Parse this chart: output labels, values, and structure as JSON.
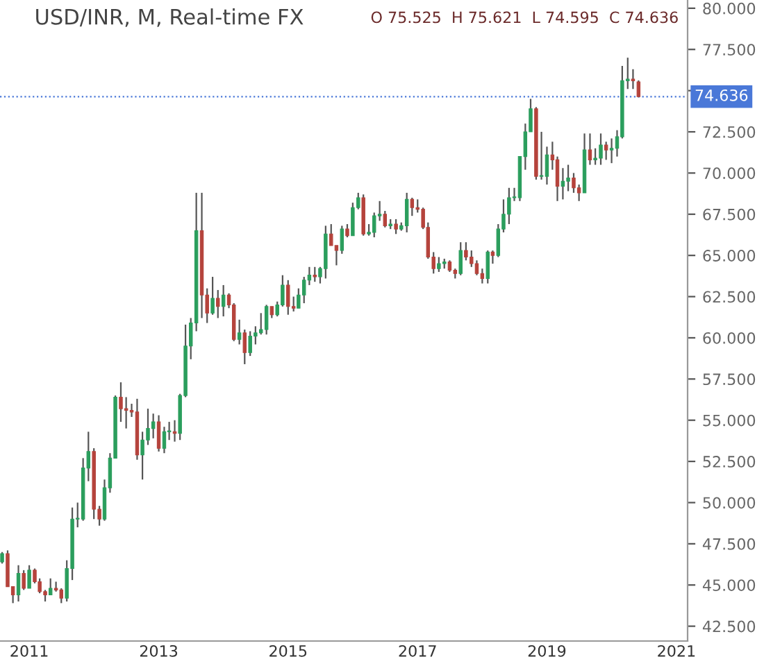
{
  "chart_data": {
    "type": "candlestick",
    "title": "USD/INR, M, Real-time FX",
    "annotations": [
      "O 75.525  H 75.621  L 74.595  C 74.636"
    ],
    "x": [
      "2010-08",
      "2010-09",
      "2010-10",
      "2010-11",
      "2010-12",
      "2011-01",
      "2011-02",
      "2011-03",
      "2011-04",
      "2011-05",
      "2011-06",
      "2011-07",
      "2011-08",
      "2011-09",
      "2011-10",
      "2011-11",
      "2011-12",
      "2012-01",
      "2012-02",
      "2012-03",
      "2012-04",
      "2012-05",
      "2012-06",
      "2012-07",
      "2012-08",
      "2012-09",
      "2012-10",
      "2012-11",
      "2012-12",
      "2013-01",
      "2013-02",
      "2013-03",
      "2013-04",
      "2013-05",
      "2013-06",
      "2013-07",
      "2013-08",
      "2013-09",
      "2013-10",
      "2013-11",
      "2013-12",
      "2014-01",
      "2014-02",
      "2014-03",
      "2014-04",
      "2014-05",
      "2014-06",
      "2014-07",
      "2014-08",
      "2014-09",
      "2014-10",
      "2014-11",
      "2014-12",
      "2015-01",
      "2015-02",
      "2015-03",
      "2015-04",
      "2015-05",
      "2015-06",
      "2015-07",
      "2015-08",
      "2015-09",
      "2015-10",
      "2015-11",
      "2015-12",
      "2016-01",
      "2016-02",
      "2016-03",
      "2016-04",
      "2016-05",
      "2016-06",
      "2016-07",
      "2016-08",
      "2016-09",
      "2016-10",
      "2016-11",
      "2016-12",
      "2017-01",
      "2017-02",
      "2017-03",
      "2017-04",
      "2017-05",
      "2017-06",
      "2017-07",
      "2017-08",
      "2017-09",
      "2017-10",
      "2017-11",
      "2017-12",
      "2018-01",
      "2018-02",
      "2018-03",
      "2018-04",
      "2018-05",
      "2018-06",
      "2018-07",
      "2018-08",
      "2018-09",
      "2018-10",
      "2018-11",
      "2018-12",
      "2019-01",
      "2019-02",
      "2019-03",
      "2019-04",
      "2019-05",
      "2019-06",
      "2019-07",
      "2019-08",
      "2019-09",
      "2019-10",
      "2019-11",
      "2019-12",
      "2020-01",
      "2020-02",
      "2020-03",
      "2020-04",
      "2020-05",
      "2020-06"
    ],
    "ohlc": [
      [
        46.4,
        47.0,
        46.3,
        46.9
      ],
      [
        46.9,
        47.1,
        44.9,
        44.9
      ],
      [
        44.9,
        44.9,
        43.9,
        44.4
      ],
      [
        44.4,
        46.2,
        44.0,
        45.7
      ],
      [
        45.7,
        45.9,
        44.7,
        44.8
      ],
      [
        44.8,
        46.2,
        44.8,
        45.9
      ],
      [
        45.9,
        46.0,
        45.1,
        45.2
      ],
      [
        45.2,
        45.4,
        44.5,
        44.6
      ],
      [
        44.6,
        44.7,
        44.0,
        44.4
      ],
      [
        44.4,
        45.4,
        44.4,
        44.8
      ],
      [
        44.8,
        45.2,
        44.6,
        44.7
      ],
      [
        44.7,
        44.8,
        43.9,
        44.2
      ],
      [
        44.2,
        46.5,
        44.0,
        46.0
      ],
      [
        46.0,
        49.7,
        45.3,
        49.0
      ],
      [
        49.0,
        50.0,
        48.5,
        49.0
      ],
      [
        49.0,
        52.7,
        48.9,
        52.1
      ],
      [
        52.1,
        54.3,
        51.3,
        53.1
      ],
      [
        53.1,
        53.3,
        49.0,
        49.6
      ],
      [
        49.6,
        49.8,
        48.6,
        49.0
      ],
      [
        49.0,
        51.4,
        48.9,
        50.9
      ],
      [
        50.9,
        53.0,
        50.6,
        52.7
      ],
      [
        52.7,
        56.5,
        52.7,
        56.4
      ],
      [
        56.4,
        57.3,
        54.9,
        55.7
      ],
      [
        55.7,
        56.4,
        54.5,
        55.6
      ],
      [
        55.6,
        56.0,
        55.2,
        55.5
      ],
      [
        55.5,
        56.3,
        52.6,
        52.9
      ],
      [
        52.9,
        54.3,
        51.4,
        53.8
      ],
      [
        53.8,
        55.7,
        53.5,
        54.5
      ],
      [
        54.5,
        55.4,
        53.9,
        54.9
      ],
      [
        54.9,
        55.3,
        53.1,
        53.3
      ],
      [
        53.3,
        54.6,
        53.0,
        54.3
      ],
      [
        54.3,
        54.9,
        53.8,
        54.3
      ],
      [
        54.3,
        55.0,
        53.7,
        54.2
      ],
      [
        54.2,
        56.6,
        53.8,
        56.5
      ],
      [
        56.5,
        60.8,
        56.4,
        59.5
      ],
      [
        59.5,
        61.2,
        58.7,
        60.9
      ],
      [
        60.9,
        68.8,
        60.4,
        66.5
      ],
      [
        66.5,
        68.8,
        61.2,
        62.6
      ],
      [
        62.6,
        63.0,
        60.9,
        61.5
      ],
      [
        61.5,
        63.7,
        61.4,
        62.4
      ],
      [
        62.4,
        62.9,
        61.2,
        61.9
      ],
      [
        61.9,
        63.2,
        61.3,
        62.6
      ],
      [
        62.6,
        62.7,
        61.8,
        62.0
      ],
      [
        62.0,
        62.1,
        59.8,
        59.9
      ],
      [
        59.9,
        61.1,
        59.6,
        60.3
      ],
      [
        60.3,
        60.5,
        58.4,
        59.1
      ],
      [
        59.1,
        60.4,
        58.9,
        60.1
      ],
      [
        60.1,
        60.7,
        59.6,
        60.3
      ],
      [
        60.3,
        61.5,
        60.2,
        60.5
      ],
      [
        60.5,
        62.0,
        60.2,
        61.9
      ],
      [
        61.9,
        61.9,
        61.2,
        61.4
      ],
      [
        61.4,
        62.2,
        61.3,
        62.0
      ],
      [
        62.0,
        63.8,
        61.9,
        63.2
      ],
      [
        63.2,
        63.5,
        61.4,
        61.9
      ],
      [
        61.9,
        62.5,
        61.6,
        61.8
      ],
      [
        61.8,
        63.0,
        61.8,
        62.6
      ],
      [
        62.6,
        63.7,
        62.1,
        63.5
      ],
      [
        63.5,
        64.3,
        63.2,
        63.8
      ],
      [
        63.8,
        64.3,
        63.4,
        63.7
      ],
      [
        63.7,
        64.3,
        63.3,
        64.2
      ],
      [
        64.2,
        66.8,
        63.6,
        66.3
      ],
      [
        66.3,
        66.9,
        65.6,
        65.6
      ],
      [
        65.6,
        65.6,
        64.4,
        65.3
      ],
      [
        65.3,
        66.8,
        65.1,
        66.6
      ],
      [
        66.6,
        66.9,
        66.1,
        66.2
      ],
      [
        66.2,
        68.2,
        66.2,
        67.9
      ],
      [
        67.9,
        68.8,
        67.8,
        68.5
      ],
      [
        68.5,
        68.7,
        66.2,
        66.3
      ],
      [
        66.3,
        66.9,
        66.2,
        66.4
      ],
      [
        66.4,
        67.6,
        66.1,
        67.4
      ],
      [
        67.4,
        68.3,
        67.1,
        67.5
      ],
      [
        67.5,
        67.7,
        66.7,
        66.8
      ],
      [
        66.8,
        67.2,
        66.6,
        66.9
      ],
      [
        66.9,
        67.2,
        66.3,
        66.6
      ],
      [
        66.6,
        67.0,
        66.5,
        66.8
      ],
      [
        66.8,
        68.8,
        66.4,
        68.4
      ],
      [
        68.4,
        68.5,
        67.4,
        67.9
      ],
      [
        67.9,
        68.4,
        67.6,
        67.8
      ],
      [
        67.8,
        67.9,
        66.6,
        66.7
      ],
      [
        66.7,
        67.0,
        64.8,
        64.9
      ],
      [
        64.9,
        65.2,
        63.9,
        64.2
      ],
      [
        64.2,
        64.9,
        64.0,
        64.5
      ],
      [
        64.5,
        64.8,
        64.2,
        64.6
      ],
      [
        64.6,
        64.7,
        64.0,
        64.1
      ],
      [
        64.1,
        64.2,
        63.6,
        63.9
      ],
      [
        63.9,
        65.8,
        63.8,
        65.3
      ],
      [
        65.3,
        65.8,
        64.7,
        64.9
      ],
      [
        64.9,
        65.3,
        64.3,
        64.5
      ],
      [
        64.5,
        64.7,
        63.8,
        63.9
      ],
      [
        63.9,
        64.2,
        63.3,
        63.6
      ],
      [
        63.6,
        65.3,
        63.3,
        65.2
      ],
      [
        65.2,
        65.3,
        64.5,
        65.0
      ],
      [
        65.0,
        66.9,
        64.9,
        66.6
      ],
      [
        66.6,
        68.4,
        66.4,
        67.5
      ],
      [
        67.5,
        69.1,
        66.9,
        68.5
      ],
      [
        68.5,
        69.1,
        68.3,
        68.5
      ],
      [
        68.5,
        71.0,
        68.3,
        71.0
      ],
      [
        71.0,
        73.0,
        70.2,
        72.5
      ],
      [
        72.5,
        74.5,
        72.5,
        73.9
      ],
      [
        73.9,
        74.0,
        69.6,
        69.8
      ],
      [
        69.8,
        72.5,
        69.6,
        69.8
      ],
      [
        69.8,
        71.6,
        69.3,
        71.1
      ],
      [
        71.1,
        71.9,
        70.2,
        70.8
      ],
      [
        70.8,
        71.0,
        68.3,
        69.2
      ],
      [
        69.2,
        70.3,
        68.4,
        69.5
      ],
      [
        69.5,
        70.5,
        68.9,
        69.7
      ],
      [
        69.7,
        70.0,
        68.8,
        69.1
      ],
      [
        69.1,
        69.3,
        68.3,
        68.8
      ],
      [
        68.8,
        72.4,
        68.8,
        71.4
      ],
      [
        71.4,
        72.4,
        70.5,
        70.8
      ],
      [
        70.8,
        71.5,
        70.5,
        70.9
      ],
      [
        70.9,
        72.4,
        70.5,
        71.7
      ],
      [
        71.7,
        71.9,
        70.8,
        71.4
      ],
      [
        71.4,
        72.1,
        70.6,
        71.5
      ],
      [
        71.5,
        72.6,
        71.0,
        72.2
      ],
      [
        72.2,
        76.5,
        72.1,
        75.6
      ],
      [
        75.6,
        77.0,
        75.1,
        75.7
      ],
      [
        75.7,
        76.3,
        75.1,
        75.6
      ],
      [
        75.525,
        75.621,
        74.595,
        74.636
      ]
    ],
    "colors": [
      "#2b9e5d",
      "#b5433c",
      "#b5433c",
      "#2b9e5d",
      "#b5433c",
      "#2b9e5d",
      "#b5433c",
      "#b5433c",
      "#b5433c",
      "#2b9e5d",
      "#b5433c",
      "#b5433c",
      "#2b9e5d",
      "#2b9e5d",
      "#2b9e5d",
      "#2b9e5d",
      "#2b9e5d",
      "#b5433c",
      "#b5433c",
      "#2b9e5d",
      "#2b9e5d",
      "#2b9e5d",
      "#b5433c",
      "#b5433c",
      "#b5433c",
      "#b5433c",
      "#2b9e5d",
      "#2b9e5d",
      "#2b9e5d",
      "#b5433c",
      "#2b9e5d",
      "#2b9e5d",
      "#b5433c",
      "#2b9e5d",
      "#2b9e5d",
      "#2b9e5d",
      "#2b9e5d",
      "#b5433c",
      "#b5433c",
      "#2b9e5d",
      "#b5433c",
      "#2b9e5d",
      "#b5433c",
      "#b5433c",
      "#2b9e5d",
      "#b5433c",
      "#2b9e5d",
      "#2b9e5d",
      "#2b9e5d",
      "#2b9e5d",
      "#b5433c",
      "#2b9e5d",
      "#2b9e5d",
      "#b5433c",
      "#b5433c",
      "#2b9e5d",
      "#2b9e5d",
      "#2b9e5d",
      "#b5433c",
      "#2b9e5d",
      "#2b9e5d",
      "#b5433c",
      "#b5433c",
      "#2b9e5d",
      "#b5433c",
      "#2b9e5d",
      "#2b9e5d",
      "#b5433c",
      "#2b9e5d",
      "#2b9e5d",
      "#2b9e5d",
      "#b5433c",
      "#2b9e5d",
      "#b5433c",
      "#2b9e5d",
      "#2b9e5d",
      "#b5433c",
      "#b5433c",
      "#b5433c",
      "#b5433c",
      "#b5433c",
      "#2b9e5d",
      "#2b9e5d",
      "#b5433c",
      "#b5433c",
      "#2b9e5d",
      "#b5433c",
      "#b5433c",
      "#b5433c",
      "#b5433c",
      "#2b9e5d",
      "#b5433c",
      "#2b9e5d",
      "#2b9e5d",
      "#2b9e5d",
      "#2b9e5d",
      "#2b9e5d",
      "#2b9e5d",
      "#2b9e5d",
      "#b5433c",
      "#2b9e5d",
      "#2b9e5d",
      "#b5433c",
      "#b5433c",
      "#2b9e5d",
      "#2b9e5d",
      "#b5433c",
      "#b5433c",
      "#2b9e5d",
      "#b5433c",
      "#2b9e5d",
      "#2b9e5d",
      "#b5433c",
      "#2b9e5d",
      "#2b9e5d",
      "#2b9e5d",
      "#2b9e5d",
      "#b5433c",
      "#b5433c"
    ],
    "xlim": [
      "2010-07-20",
      "2021-03-05"
    ],
    "xticks": [
      {
        "value": "2011",
        "label": "2011"
      },
      {
        "value": "2013",
        "label": "2013"
      },
      {
        "value": "2015",
        "label": "2015"
      },
      {
        "value": "2017",
        "label": "2017"
      },
      {
        "value": "2019",
        "label": "2019"
      },
      {
        "value": "2021",
        "label": "2021"
      }
    ],
    "ylim": [
      41.6,
      80.5
    ],
    "yticks": [
      {
        "value": 42.5,
        "label": "42.500"
      },
      {
        "value": 45,
        "label": "45.000"
      },
      {
        "value": 47.5,
        "label": "47.500"
      },
      {
        "value": 50,
        "label": "50.000"
      },
      {
        "value": 52.5,
        "label": "52.500"
      },
      {
        "value": 55,
        "label": "55.000"
      },
      {
        "value": 57.5,
        "label": "57.500"
      },
      {
        "value": 60,
        "label": "60.000"
      },
      {
        "value": 62.5,
        "label": "62.500"
      },
      {
        "value": 65,
        "label": "65.000"
      },
      {
        "value": 67.5,
        "label": "67.500"
      },
      {
        "value": 70,
        "label": "70.000"
      },
      {
        "value": 72.5,
        "label": "72.500"
      },
      {
        "value": 75,
        "label": null
      },
      {
        "value": 77.5,
        "label": "77.500"
      },
      {
        "value": 80,
        "label": "80.000"
      }
    ],
    "ref_lines": [
      {
        "axis": "y",
        "value": 74.636,
        "label": "74.636",
        "color": "#4a78d8",
        "line_style": "dotted"
      }
    ],
    "grid": false,
    "legend": false
  }
}
